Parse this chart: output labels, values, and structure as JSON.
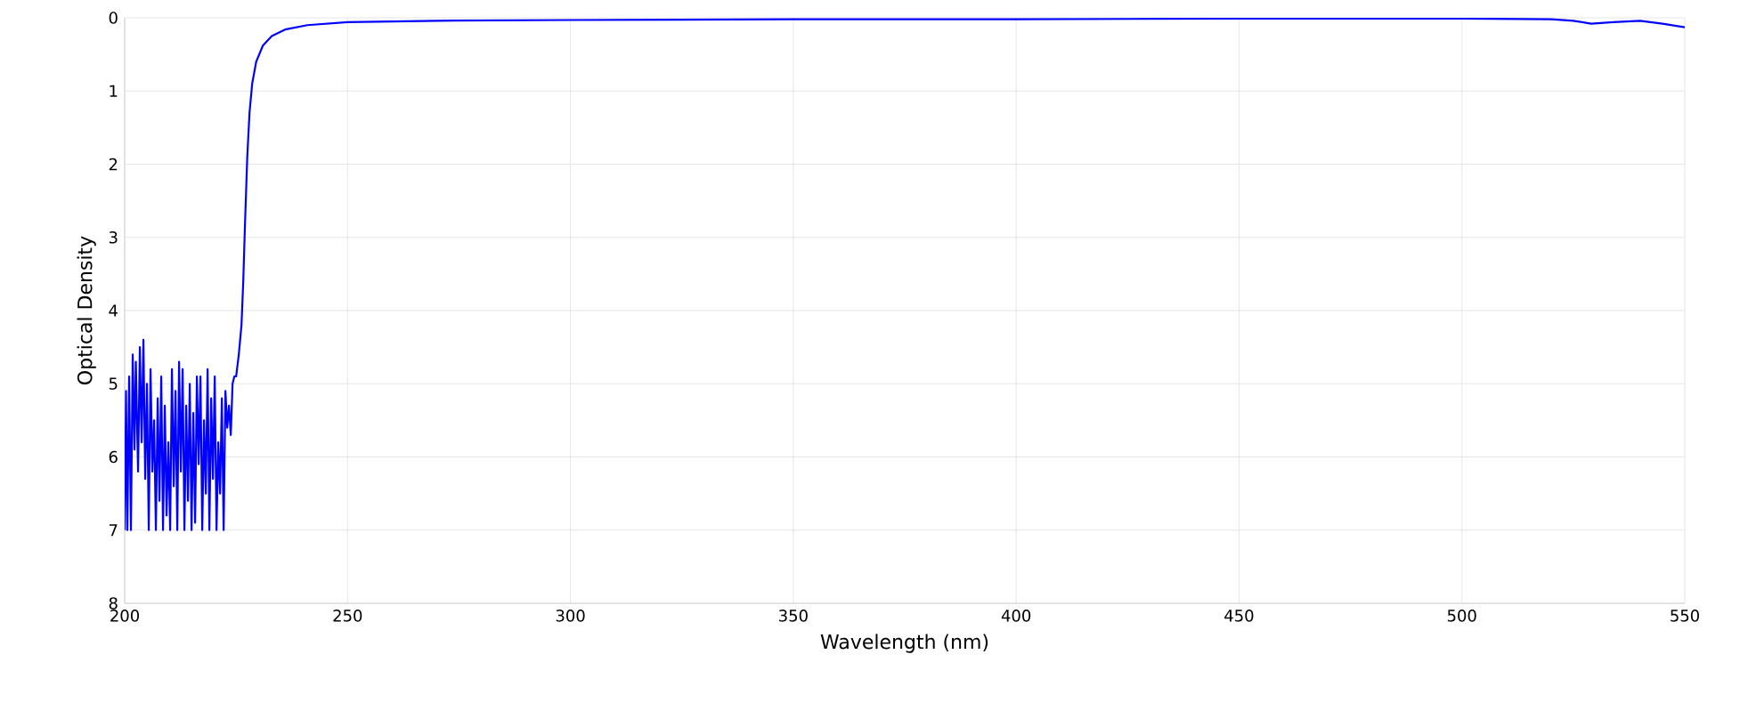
{
  "chart_data": {
    "type": "line",
    "xlabel": "Wavelength (nm)",
    "ylabel": "Optical Density",
    "xlim": [
      200,
      550
    ],
    "xticks": [
      200,
      250,
      300,
      350,
      400,
      450,
      500,
      550
    ],
    "ylim": [
      8,
      0
    ],
    "yticks": [
      0,
      1,
      2,
      3,
      4,
      5,
      6,
      7,
      8
    ],
    "grid": true,
    "series": [
      {
        "color": "#0000ff",
        "x": [
          200,
          200.3,
          200.6,
          201,
          201.4,
          201.8,
          202.2,
          202.5,
          203,
          203.4,
          203.8,
          204.2,
          204.6,
          205,
          205.4,
          205.8,
          206.2,
          206.6,
          207,
          207.4,
          207.8,
          208.2,
          208.6,
          209,
          209.4,
          209.8,
          210.2,
          210.6,
          211,
          211.4,
          211.8,
          212.2,
          212.6,
          213,
          213.4,
          213.8,
          214.2,
          214.6,
          215,
          215.4,
          215.8,
          216.2,
          216.6,
          217,
          217.4,
          217.8,
          218.2,
          218.6,
          219,
          219.4,
          219.8,
          220.2,
          220.6,
          221,
          221.4,
          221.8,
          222.2,
          222.6,
          223,
          223.4,
          223.8,
          224.2,
          224.6,
          225,
          225.6,
          226.2,
          226.6,
          227,
          227.5,
          228,
          228.6,
          229.5,
          231,
          233,
          236,
          241,
          250,
          270,
          300,
          350,
          400,
          450,
          500,
          520,
          525,
          529,
          534,
          540,
          545,
          550
        ],
        "values": [
          7,
          5.1,
          7,
          4.9,
          7,
          4.6,
          5.9,
          4.7,
          6.2,
          4.5,
          5.8,
          4.4,
          6.3,
          5,
          7,
          4.8,
          6.2,
          5.5,
          7,
          5.2,
          6.6,
          4.9,
          7,
          5.3,
          6.8,
          5.8,
          7,
          4.8,
          6.4,
          5.1,
          7,
          4.7,
          6.2,
          4.8,
          7,
          5.3,
          6.6,
          5,
          7,
          5.4,
          6.9,
          4.9,
          6.1,
          4.9,
          7,
          5.5,
          6.5,
          4.8,
          7,
          5.2,
          6.3,
          4.9,
          7,
          5.8,
          6.5,
          5.2,
          7,
          5.1,
          5.6,
          5.3,
          5.7,
          5,
          4.9,
          4.9,
          4.6,
          4.2,
          3.6,
          2.8,
          1.9,
          1.3,
          0.9,
          0.6,
          0.38,
          0.25,
          0.16,
          0.1,
          0.06,
          0.04,
          0.03,
          0.02,
          0.02,
          0.01,
          0.01,
          0.02,
          0.04,
          0.08,
          0.06,
          0.04,
          0.08,
          0.13
        ]
      }
    ]
  }
}
